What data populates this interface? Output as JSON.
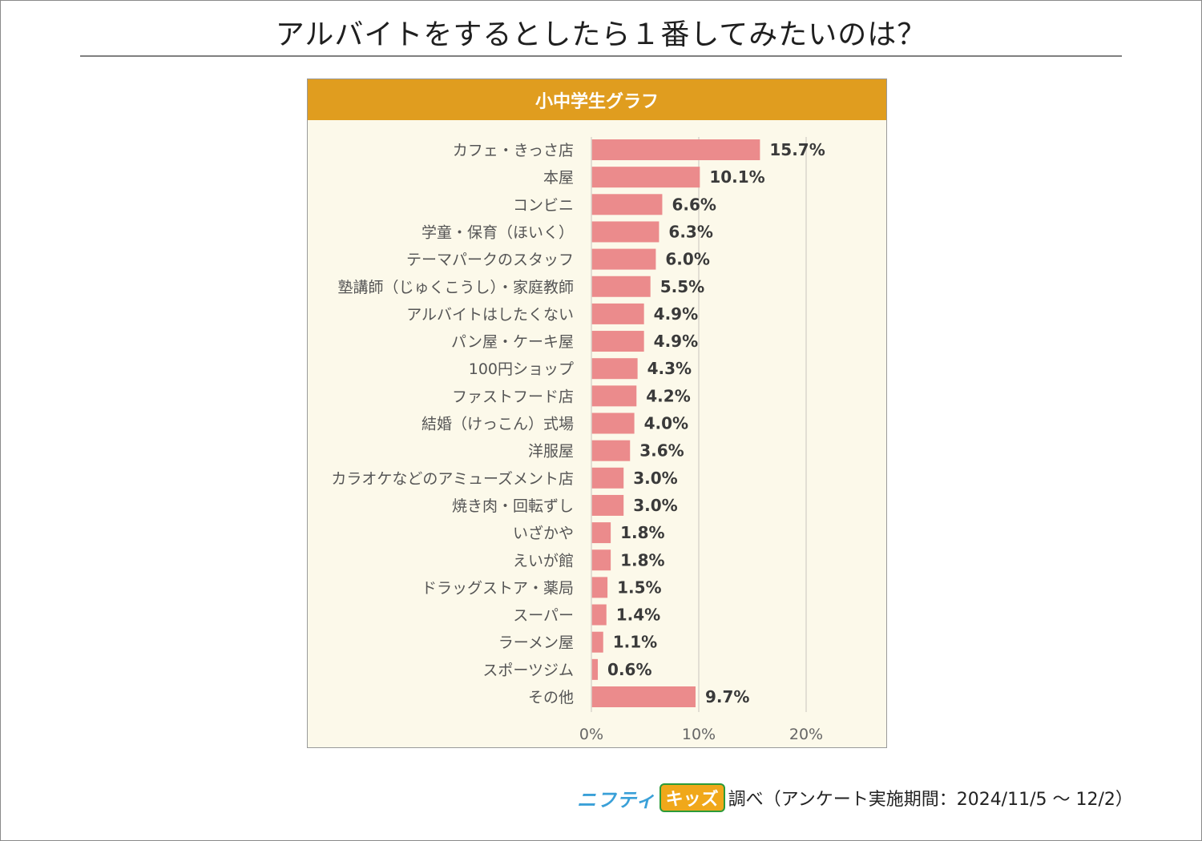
{
  "page": {
    "title": "アルバイトをするとしたら１番してみたいのは？"
  },
  "panel": {
    "header": "小中学生グラフ"
  },
  "footer": {
    "brand_nifty": "ニフティ",
    "brand_kids": "キッズ",
    "text": "調べ（アンケート実施期間：2024/11/5 ～ 12/2）"
  },
  "colors": {
    "bar": "#eb8b8c",
    "header": "#e09d1f",
    "panel_bg": "#fcf9ea",
    "grid": "#d9d6cc",
    "axis_text": "#666666",
    "label_text": "#555555",
    "value_text": "#3a3a3a"
  },
  "chart_data": {
    "type": "bar",
    "orientation": "horizontal",
    "title": "小中学生グラフ",
    "categories": [
      "カフェ・きっさ店",
      "本屋",
      "コンビニ",
      "学童・保育（ほいく）",
      "テーマパークのスタッフ",
      "塾講師（じゅくこうし）・家庭教師",
      "アルバイトはしたくない",
      "パン屋・ケーキ屋",
      "100円ショップ",
      "ファストフード店",
      "結婚（けっこん）式場",
      "洋服屋",
      "カラオケなどのアミューズメント店",
      "焼き肉・回転ずし",
      "いざかや",
      "えいが館",
      "ドラッグストア・薬局",
      "スーパー",
      "ラーメン屋",
      "スポーツジム",
      "その他"
    ],
    "values": [
      15.7,
      10.1,
      6.6,
      6.3,
      6.0,
      5.5,
      4.9,
      4.9,
      4.3,
      4.2,
      4.0,
      3.6,
      3.0,
      3.0,
      1.8,
      1.8,
      1.5,
      1.4,
      1.1,
      0.6,
      9.7
    ],
    "value_labels": [
      "15.7%",
      "10.1%",
      "6.6%",
      "6.3%",
      "6.0%",
      "5.5%",
      "4.9%",
      "4.9%",
      "4.3%",
      "4.2%",
      "4.0%",
      "3.6%",
      "3.0%",
      "3.0%",
      "1.8%",
      "1.8%",
      "1.5%",
      "1.4%",
      "1.1%",
      "0.6%",
      "9.7%"
    ],
    "xlim": [
      0,
      25
    ],
    "xticks": [
      0,
      10,
      20
    ],
    "xtick_labels": [
      "0%",
      "10%",
      "20%"
    ],
    "grid": true,
    "legend": "none"
  }
}
